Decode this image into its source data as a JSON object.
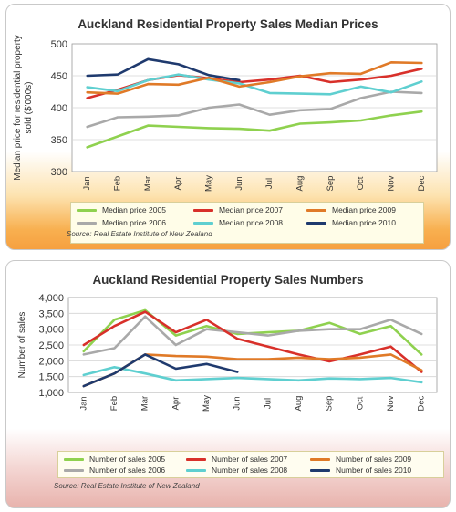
{
  "chart_data": [
    {
      "type": "line",
      "title": "Auckland Residential Property Sales Median Prices",
      "ylabel": "Median price for residential property sold ($'000s)",
      "xlabel": "",
      "categories": [
        "Jan",
        "Feb",
        "Mar",
        "Apr",
        "May",
        "Jun",
        "Jul",
        "Aug",
        "Sep",
        "Oct",
        "Nov",
        "Dec"
      ],
      "yticks": [
        "300",
        "350",
        "400",
        "450",
        "500"
      ],
      "ylim": [
        300,
        500
      ],
      "grid": true,
      "legend_position": "bottom",
      "series": [
        {
          "name": "Median price 2005",
          "color": "#8fd14f",
          "values": [
            338,
            355,
            372,
            370,
            368,
            367,
            364,
            375,
            377,
            380,
            388,
            394
          ]
        },
        {
          "name": "Median price 2006",
          "color": "#a9a9a9",
          "values": [
            370,
            385,
            386,
            388,
            400,
            405,
            389,
            396,
            398,
            415,
            425,
            423
          ]
        },
        {
          "name": "Median price 2007",
          "color": "#d8302a",
          "values": [
            415,
            428,
            443,
            451,
            446,
            440,
            444,
            450,
            440,
            444,
            450,
            461
          ]
        },
        {
          "name": "Median price 2008",
          "color": "#5fcfd0",
          "values": [
            432,
            426,
            443,
            452,
            444,
            438,
            423,
            422,
            421,
            433,
            424,
            441
          ]
        },
        {
          "name": "Median price 2009",
          "color": "#e07a28",
          "values": [
            424,
            422,
            437,
            436,
            447,
            433,
            440,
            449,
            454,
            453,
            471,
            470
          ]
        },
        {
          "name": "Median price 2010",
          "color": "#1f3a6e",
          "values": [
            450,
            452,
            476,
            468,
            451,
            443,
            null,
            null,
            null,
            null,
            null,
            null
          ]
        }
      ],
      "source": "Source: Real Estate Institute of New Zealand"
    },
    {
      "type": "line",
      "title": "Auckland Residential Property Sales Numbers",
      "ylabel": "Number of sales",
      "xlabel": "",
      "categories": [
        "Jan",
        "Feb",
        "Mar",
        "Apr",
        "May",
        "Jun",
        "Jul",
        "Aug",
        "Sep",
        "Oct",
        "Nov",
        "Dec"
      ],
      "yticks": [
        "1,000",
        "1,500",
        "2,000",
        "2,500",
        "3,000",
        "3,500",
        "4,000"
      ],
      "ylim": [
        1000,
        4000
      ],
      "grid": true,
      "legend_position": "bottom",
      "series": [
        {
          "name": "Number of sales 2005",
          "color": "#8fd14f",
          "values": [
            2300,
            3300,
            3600,
            2800,
            3100,
            2850,
            2900,
            2950,
            3200,
            2850,
            3100,
            2200
          ]
        },
        {
          "name": "Number of sales 2006",
          "color": "#a9a9a9",
          "values": [
            2200,
            2400,
            3400,
            2500,
            3000,
            2900,
            2800,
            2950,
            3000,
            3000,
            3300,
            2850
          ]
        },
        {
          "name": "Number of sales 2007",
          "color": "#d8302a",
          "values": [
            2500,
            3100,
            3550,
            2900,
            3300,
            2700,
            2450,
            2200,
            1980,
            2200,
            2450,
            1650
          ]
        },
        {
          "name": "Number of sales 2008",
          "color": "#5fcfd0",
          "values": [
            1550,
            1800,
            1600,
            1380,
            1420,
            1460,
            1420,
            1380,
            1440,
            1420,
            1460,
            1320
          ]
        },
        {
          "name": "Number of sales 2009",
          "color": "#e07a28",
          "values": [
            1200,
            1600,
            2200,
            2150,
            2130,
            2050,
            2050,
            2100,
            2050,
            2100,
            2200,
            1700
          ]
        },
        {
          "name": "Number of sales 2010",
          "color": "#1f3a6e",
          "values": [
            1200,
            1600,
            2200,
            1750,
            1900,
            1650,
            null,
            null,
            null,
            null,
            null,
            null
          ]
        }
      ],
      "source": "Source: Real Estate Institute of New Zealand"
    }
  ]
}
